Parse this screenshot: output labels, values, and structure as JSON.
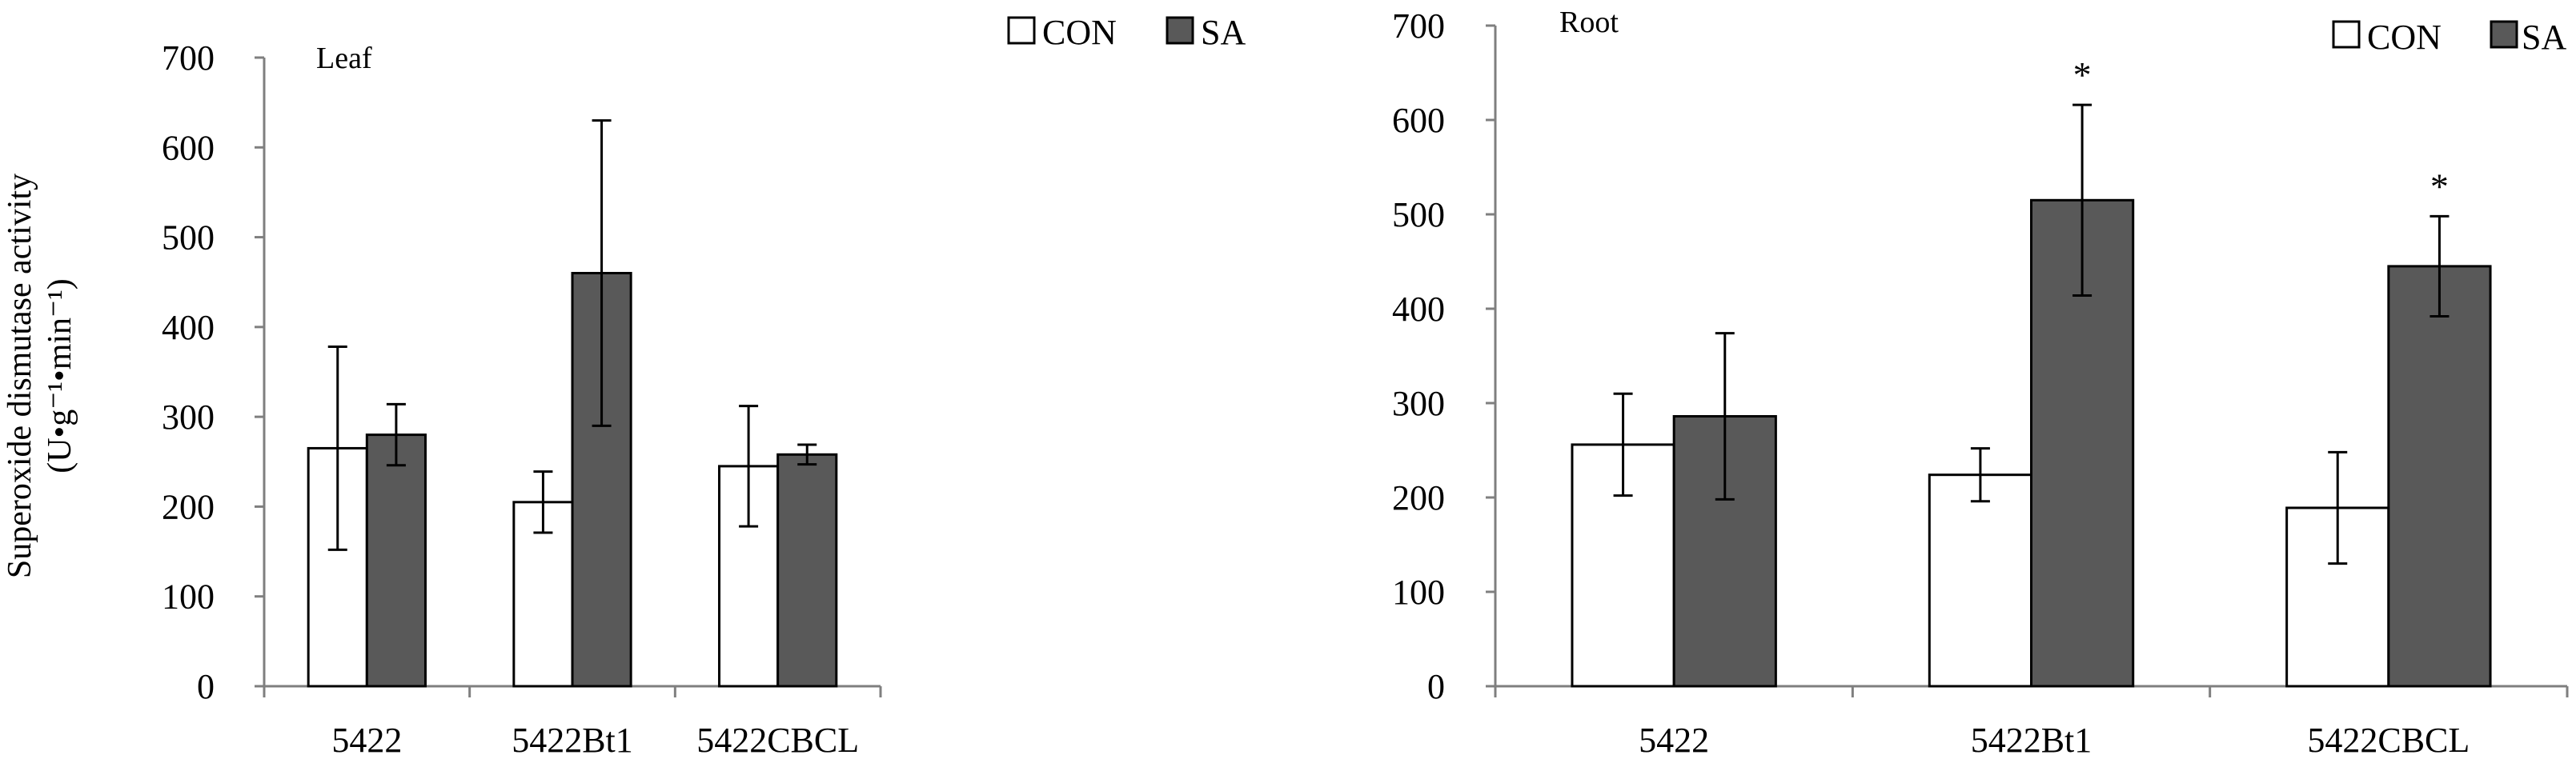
{
  "ylabel_line1": "Superoxide dismutase activity",
  "ylabel_line2": "(U•g⁻¹•min⁻¹)",
  "colors": {
    "CON": "#ffffff",
    "SA": "#595959",
    "axis": "#7f7f7f",
    "outline": "#000000"
  },
  "chart_data": [
    {
      "type": "bar",
      "title": "Leaf",
      "categories": [
        "5422",
        "5422Bt1",
        "5422CBCL"
      ],
      "ylim": [
        0,
        700
      ],
      "yticks": [
        0,
        100,
        200,
        300,
        400,
        500,
        600,
        700
      ],
      "ytick_labels": [
        "0",
        "100",
        "200",
        "300",
        "400",
        "500",
        "600",
        "700"
      ],
      "legend": [
        "CON",
        "SA"
      ],
      "series": [
        {
          "name": "CON",
          "values": [
            265,
            205,
            245
          ],
          "errors": [
            113,
            34,
            67
          ],
          "significance": [
            "",
            "",
            ""
          ]
        },
        {
          "name": "SA",
          "values": [
            280,
            460,
            258
          ],
          "errors": [
            34,
            170,
            11
          ],
          "significance": [
            "",
            "",
            ""
          ]
        }
      ]
    },
    {
      "type": "bar",
      "title": "Root",
      "categories": [
        "5422",
        "5422Bt1",
        "5422CBCL"
      ],
      "ylim": [
        0,
        700
      ],
      "yticks": [
        0,
        100,
        200,
        300,
        400,
        500,
        600,
        700
      ],
      "ytick_labels": [
        "0",
        "100",
        "200",
        "300",
        "400",
        "500",
        "600",
        "700"
      ],
      "legend": [
        "CON",
        "SA"
      ],
      "series": [
        {
          "name": "CON",
          "values": [
            256,
            224,
            189
          ],
          "errors": [
            54,
            28,
            59
          ],
          "significance": [
            "",
            "",
            ""
          ]
        },
        {
          "name": "SA",
          "values": [
            286,
            515,
            445
          ],
          "errors": [
            88,
            101,
            53
          ],
          "significance": [
            "",
            "*",
            "*"
          ]
        }
      ]
    }
  ]
}
